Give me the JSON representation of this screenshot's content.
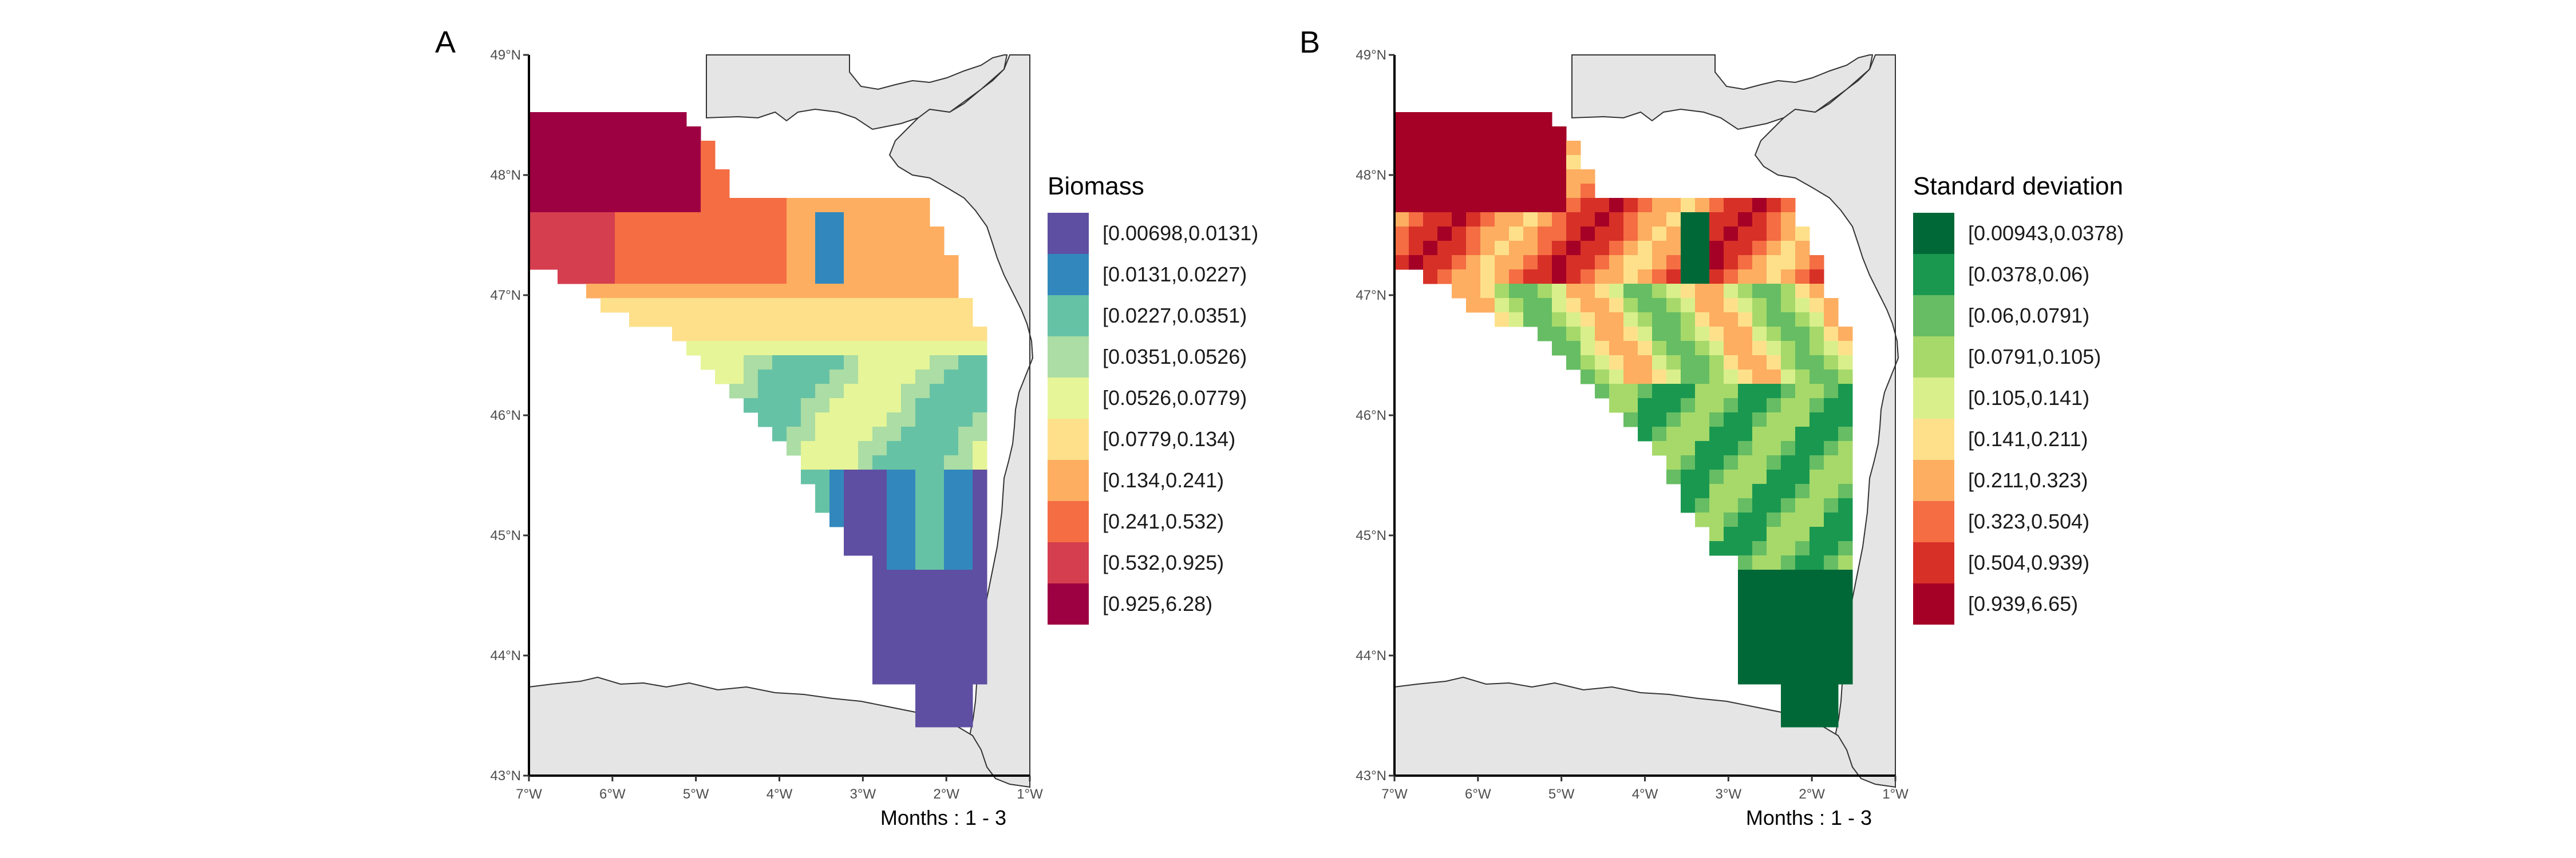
{
  "figure_type": "map",
  "chart_data": [
    {
      "type": "heatmap",
      "panel_tag": "A",
      "legend_title": "Biomass",
      "caption": "Months : 1 - 3",
      "x_ticks": [
        "7°W",
        "6°W",
        "5°W",
        "4°W",
        "3°W",
        "2°W",
        "1°W"
      ],
      "y_ticks": [
        "49°N",
        "48°N",
        "47°N",
        "46°N",
        "45°N",
        "44°N",
        "43°N"
      ],
      "lon_range": [
        -7,
        -1
      ],
      "lat_range": [
        43,
        49
      ],
      "classes": [
        {
          "label": "[0.00698,0.0131)",
          "color": "#5E4FA2"
        },
        {
          "label": "[0.0131,0.0227)",
          "color": "#3288BD"
        },
        {
          "label": "[0.0227,0.0351)",
          "color": "#66C2A5"
        },
        {
          "label": "[0.0351,0.0526)",
          "color": "#ABDDA4"
        },
        {
          "label": "[0.0526,0.0779)",
          "color": "#E6F598"
        },
        {
          "label": "[0.0779,0.134)",
          "color": "#FEE08B"
        },
        {
          "label": "[0.134,0.241)",
          "color": "#FDAE61"
        },
        {
          "label": "[0.241,0.532)",
          "color": "#F46D43"
        },
        {
          "label": "[0.532,0.925)",
          "color": "#D53E4F"
        },
        {
          "label": "[0.925,6.28)",
          "color": "#9E0142"
        }
      ]
    },
    {
      "type": "heatmap",
      "panel_tag": "B",
      "legend_title": "Standard deviation",
      "caption": "Months : 1 - 3",
      "x_ticks": [
        "7°W",
        "6°W",
        "5°W",
        "4°W",
        "3°W",
        "2°W",
        "1°W"
      ],
      "y_ticks": [
        "49°N",
        "48°N",
        "47°N",
        "46°N",
        "45°N",
        "44°N",
        "43°N"
      ],
      "lon_range": [
        -7,
        -1
      ],
      "lat_range": [
        43,
        49
      ],
      "classes": [
        {
          "label": "[0.00943,0.0378)",
          "color": "#006837"
        },
        {
          "label": "[0.0378,0.06)",
          "color": "#1A9850"
        },
        {
          "label": "[0.06,0.0791)",
          "color": "#66BD63"
        },
        {
          "label": "[0.0791,0.105)",
          "color": "#A6D96A"
        },
        {
          "label": "[0.105,0.141)",
          "color": "#D9EF8B"
        },
        {
          "label": "[0.141,0.211)",
          "color": "#FEE08B"
        },
        {
          "label": "[0.211,0.323)",
          "color": "#FDAE61"
        },
        {
          "label": "[0.323,0.504)",
          "color": "#F46D43"
        },
        {
          "label": "[0.504,0.939)",
          "color": "#D73027"
        },
        {
          "label": "[0.939,6.65)",
          "color": "#A50026"
        }
      ]
    }
  ],
  "colors": {
    "land": "#E5E5E5",
    "coast": "#333333"
  }
}
